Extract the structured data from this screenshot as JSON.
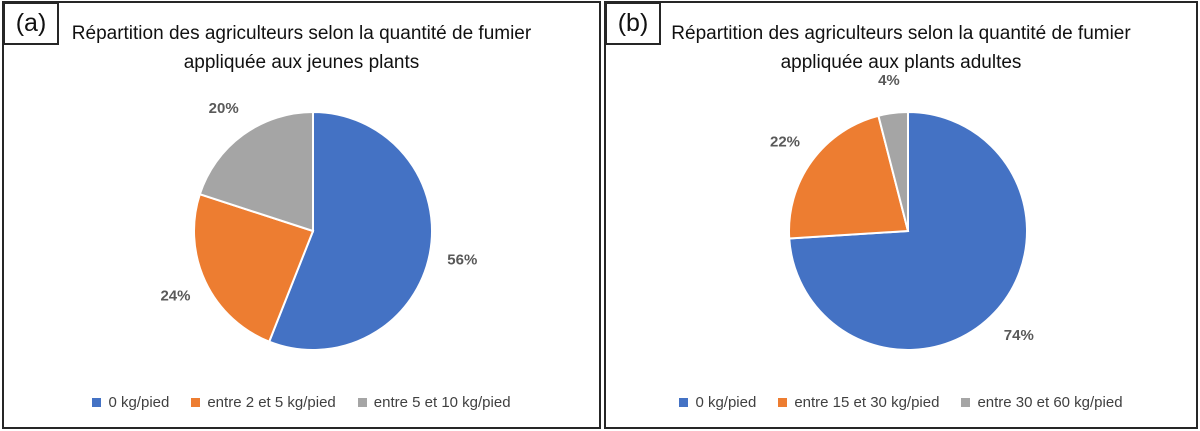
{
  "chart_data": [
    {
      "type": "pie",
      "panel_label": "(a)",
      "title": "Répartition des agriculteurs selon la quantité de fumier appliquée aux jeunes plants",
      "categories": [
        "0 kg/pied",
        "entre 2 et 5 kg/pied",
        "entre 5 et 10 kg/pied"
      ],
      "values": [
        56,
        24,
        20
      ],
      "labels": [
        "56%",
        "24%",
        "20%"
      ],
      "colors": [
        "#4472C4",
        "#ED7D31",
        "#A5A5A5"
      ],
      "legend_position": "bottom"
    },
    {
      "type": "pie",
      "panel_label": "(b)",
      "title": "Répartition des agriculteurs selon la quantité de fumier appliquée aux plants adultes",
      "categories": [
        "0 kg/pied",
        "entre 15 et 30 kg/pied",
        "entre 30 et 60 kg/pied"
      ],
      "values": [
        74,
        22,
        4
      ],
      "labels": [
        "74%",
        "22%",
        "4%"
      ],
      "colors": [
        "#4472C4",
        "#ED7D31",
        "#A5A5A5"
      ],
      "legend_position": "bottom"
    }
  ]
}
